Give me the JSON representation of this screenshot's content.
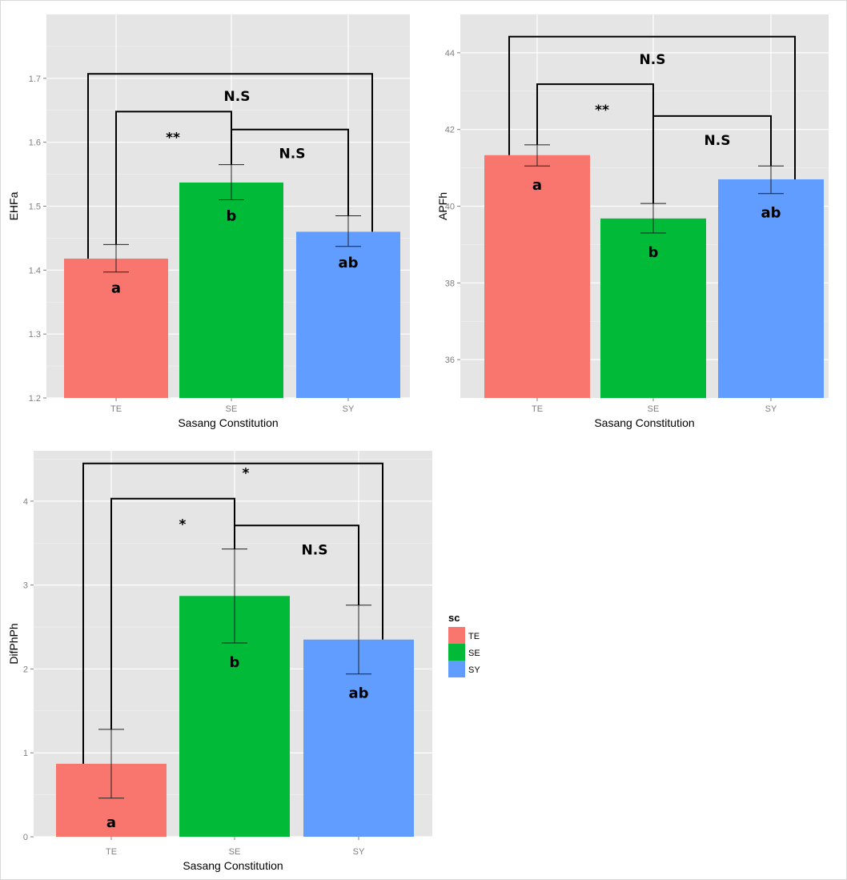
{
  "colors": {
    "TE": "#F8766D",
    "SE": "#00BA38",
    "SY": "#619CFF",
    "panel_bg": "#E5E5E5",
    "grid": "#FFFFFF"
  },
  "legend": {
    "title": "sc",
    "items": [
      {
        "label": "TE",
        "color": "#F8766D"
      },
      {
        "label": "SE",
        "color": "#00BA38"
      },
      {
        "label": "SY",
        "color": "#619CFF"
      }
    ],
    "placement": "right"
  },
  "chart_data": [
    {
      "type": "bar",
      "ylabel": "EHFa",
      "xlabel": "Sasang Constitution",
      "categories": [
        "TE",
        "SE",
        "SY"
      ],
      "values": [
        1.418,
        1.537,
        1.46
      ],
      "error_low": [
        1.397,
        1.51,
        1.437
      ],
      "error_high": [
        1.44,
        1.565,
        1.485
      ],
      "letters": [
        "a",
        "b",
        "ab"
      ],
      "ylim": [
        1.2,
        1.8
      ],
      "yticks": [
        "1.2",
        "1.3",
        "1.4",
        "1.5",
        "1.6",
        "1.7"
      ],
      "comparisons": [
        {
          "from": "TE",
          "to": "SY",
          "label": "N.S",
          "y": 1.707
        },
        {
          "from": "TE",
          "to": "SE",
          "label": "**",
          "y": 1.648
        },
        {
          "from": "SE",
          "to": "SY",
          "label": "N.S",
          "y": 1.62
        }
      ]
    },
    {
      "type": "bar",
      "ylabel": "APFh",
      "xlabel": "Sasang Constitution",
      "categories": [
        "TE",
        "SE",
        "SY"
      ],
      "values": [
        41.33,
        39.68,
        40.7
      ],
      "error_low": [
        41.05,
        39.3,
        40.33
      ],
      "error_high": [
        41.6,
        40.07,
        41.05
      ],
      "letters": [
        "a",
        "b",
        "ab"
      ],
      "ylim": [
        35.0,
        45.0
      ],
      "yticks": [
        "36",
        "38",
        "40",
        "42",
        "44"
      ],
      "comparisons": [
        {
          "from": "TE",
          "to": "SY",
          "label": "N.S",
          "y": 44.42
        },
        {
          "from": "TE",
          "to": "SE",
          "label": "**",
          "y": 43.18
        },
        {
          "from": "SE",
          "to": "SY",
          "label": "N.S",
          "y": 42.35
        }
      ]
    },
    {
      "type": "bar",
      "ylabel": "DifPhPh",
      "xlabel": "Sasang Constitution",
      "categories": [
        "TE",
        "SE",
        "SY"
      ],
      "values": [
        0.87,
        2.87,
        2.35
      ],
      "error_low": [
        0.46,
        2.31,
        1.94
      ],
      "error_high": [
        1.28,
        3.43,
        2.76
      ],
      "letters": [
        "a",
        "b",
        "ab"
      ],
      "ylim": [
        0,
        4.6
      ],
      "yticks": [
        "0",
        "1",
        "2",
        "3",
        "4"
      ],
      "comparisons": [
        {
          "from": "TE",
          "to": "SY",
          "label": "*",
          "y": 4.45
        },
        {
          "from": "TE",
          "to": "SE",
          "label": "*",
          "y": 4.03
        },
        {
          "from": "SE",
          "to": "SY",
          "label": "N.S",
          "y": 3.71
        }
      ]
    }
  ]
}
